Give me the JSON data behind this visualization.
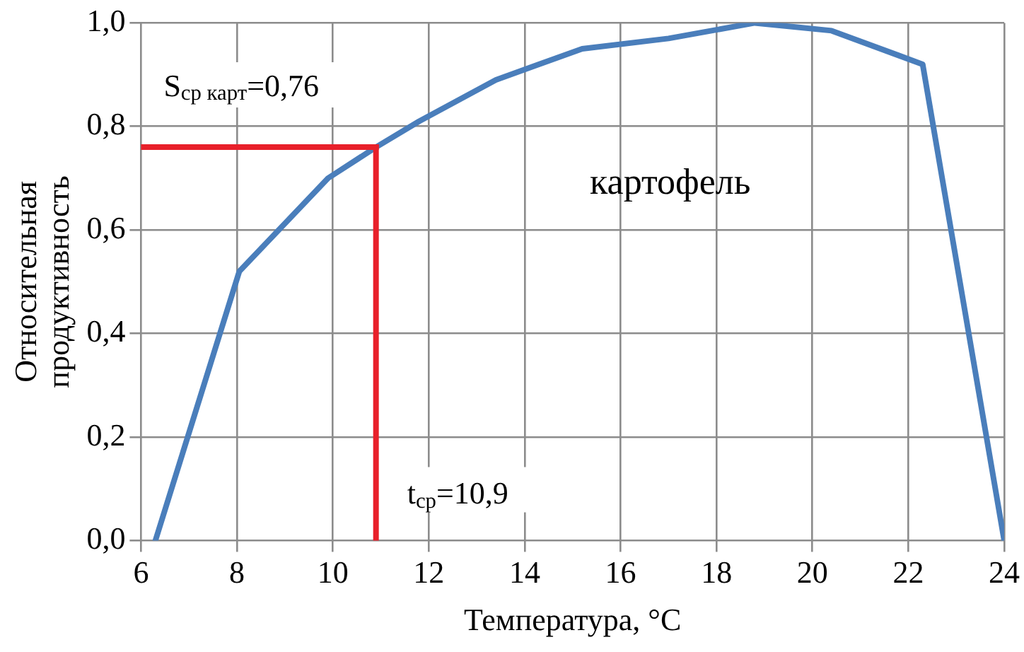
{
  "chart_data": {
    "type": "line",
    "xlabel": "Температура, °C",
    "ylabel": "Относительная продуктивность",
    "x": [
      6.3,
      8.05,
      9.9,
      10.9,
      11.8,
      13.4,
      15.2,
      17,
      18.8,
      20.4,
      22.3,
      24
    ],
    "series": [
      {
        "color": "#4a7ebb",
        "values": [
          0,
          0.52,
          0.7,
          0.76,
          0.81,
          0.89,
          0.95,
          0.97,
          1.0,
          0.985,
          0.92,
          0
        ]
      }
    ],
    "xlim": [
      6,
      24
    ],
    "xticks": [
      6,
      8,
      10,
      12,
      14,
      16,
      18,
      20,
      22,
      24
    ],
    "ylim": [
      0,
      1
    ],
    "yticks": [
      {
        "value": 0,
        "label": "0,0"
      },
      {
        "value": 0.2,
        "label": "0,2"
      },
      {
        "value": 0.4,
        "label": "0,4"
      },
      {
        "value": 0.6,
        "label": "0,6"
      },
      {
        "value": 0.8,
        "label": "0,8"
      },
      {
        "value": 1,
        "label": "1,0"
      }
    ],
    "grid": true,
    "legend": false,
    "marker": "none",
    "line_style": "solid",
    "ref_lines": [
      {
        "axis": "y",
        "value": 0.76,
        "label": "S$_{ср карт}$=0,76",
        "color": "#e8202a"
      },
      {
        "axis": "x",
        "value": 10.9,
        "label": "t$_{ср}$=10,9",
        "color": "#e8202a"
      }
    ],
    "annotations": [
      "картофель"
    ]
  }
}
